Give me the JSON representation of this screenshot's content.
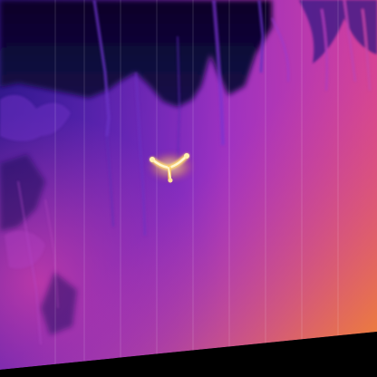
{
  "image": {
    "kind": "thermal-infrared-photo",
    "palette": "ironbow",
    "colors": {
      "cold": "#0c0530",
      "cool": "#3a1d9a",
      "mid": "#7b2fd6",
      "warm": "#c43aa8",
      "hot": "#f07a2a",
      "hottest": "#ffe9a0",
      "border": "#000000"
    }
  }
}
